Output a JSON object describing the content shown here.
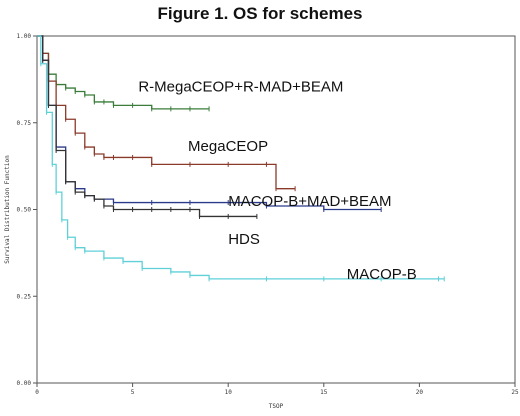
{
  "chart_data": {
    "type": "line",
    "title": "Figure 1. OS for schemes",
    "xlabel": "TSOP",
    "ylabel": "Survival Distribution Function",
    "xlim": [
      0,
      25
    ],
    "ylim": [
      0,
      1
    ],
    "xticks": [
      0,
      5,
      10,
      15,
      20,
      25
    ],
    "yticks": [
      0.0,
      0.25,
      0.5,
      0.75,
      1.0
    ],
    "ytick_labels": [
      "0.00",
      "0.25",
      "0.50",
      "0.75",
      "1.00"
    ],
    "legend": "none",
    "series": [
      {
        "name": "R-MegaCEOP+R-MAD+BEAM",
        "color": "#3a7d3a",
        "x": [
          0,
          0.3,
          0.6,
          1.0,
          1.5,
          2.0,
          2.5,
          3.0,
          3.5,
          4.0,
          5.0,
          6.0,
          7.0,
          8.0,
          9.0
        ],
        "y": [
          1.0,
          0.95,
          0.89,
          0.86,
          0.85,
          0.84,
          0.83,
          0.81,
          0.81,
          0.8,
          0.8,
          0.79,
          0.79,
          0.79,
          0.79
        ]
      },
      {
        "name": "MegaCEOP",
        "color": "#8b3a2a",
        "x": [
          0,
          0.3,
          0.6,
          1.0,
          1.5,
          2.0,
          2.5,
          3.0,
          3.5,
          4.0,
          5.0,
          6.0,
          8.0,
          10.0,
          12.0,
          12.5,
          13.5
        ],
        "y": [
          1.0,
          0.95,
          0.87,
          0.8,
          0.76,
          0.72,
          0.68,
          0.66,
          0.65,
          0.65,
          0.65,
          0.63,
          0.63,
          0.63,
          0.63,
          0.56,
          0.56
        ]
      },
      {
        "name": "MACOP-B+MAD+BEAM",
        "color": "#2b3a8a",
        "x": [
          0,
          0.3,
          0.6,
          1.0,
          1.5,
          2.0,
          2.5,
          3.0,
          4.0,
          6.0,
          8.0,
          10.0,
          12.0,
          15.0,
          18.0
        ],
        "y": [
          1.0,
          0.93,
          0.8,
          0.68,
          0.58,
          0.56,
          0.54,
          0.53,
          0.52,
          0.52,
          0.52,
          0.52,
          0.51,
          0.5,
          0.5
        ]
      },
      {
        "name": "HDS",
        "color": "#333333",
        "x": [
          0,
          0.3,
          0.6,
          1.0,
          1.5,
          2.0,
          2.5,
          3.0,
          3.5,
          4.0,
          5.0,
          6.0,
          7.0,
          8.0,
          8.5,
          10.0,
          11.5
        ],
        "y": [
          1.0,
          0.93,
          0.8,
          0.67,
          0.58,
          0.55,
          0.54,
          0.53,
          0.51,
          0.5,
          0.5,
          0.5,
          0.5,
          0.5,
          0.48,
          0.48,
          0.48
        ]
      },
      {
        "name": "MACOP-B",
        "color": "#5fd0d8",
        "x": [
          0,
          0.2,
          0.5,
          0.8,
          1.0,
          1.3,
          1.6,
          2.0,
          2.5,
          3.5,
          4.5,
          5.5,
          7.0,
          8.0,
          9.0,
          12.0,
          15.0,
          18.0,
          21.0,
          21.3
        ],
        "y": [
          1.0,
          0.92,
          0.78,
          0.63,
          0.55,
          0.47,
          0.42,
          0.39,
          0.38,
          0.36,
          0.35,
          0.33,
          0.32,
          0.31,
          0.3,
          0.3,
          0.3,
          0.3,
          0.3,
          0.3
        ]
      }
    ],
    "annotations": [
      {
        "text": "R-MegaCEOP+R-MAD+BEAM",
        "x": 5.3,
        "y": 0.84
      },
      {
        "text": "MegaCEOP",
        "x": 7.9,
        "y": 0.668
      },
      {
        "text": "MACOP-B+MAD+BEAM",
        "x": 10.0,
        "y": 0.51
      },
      {
        "text": "HDS",
        "x": 10.0,
        "y": 0.4
      },
      {
        "text": "MACOP-B",
        "x": 16.2,
        "y": 0.3
      }
    ]
  }
}
